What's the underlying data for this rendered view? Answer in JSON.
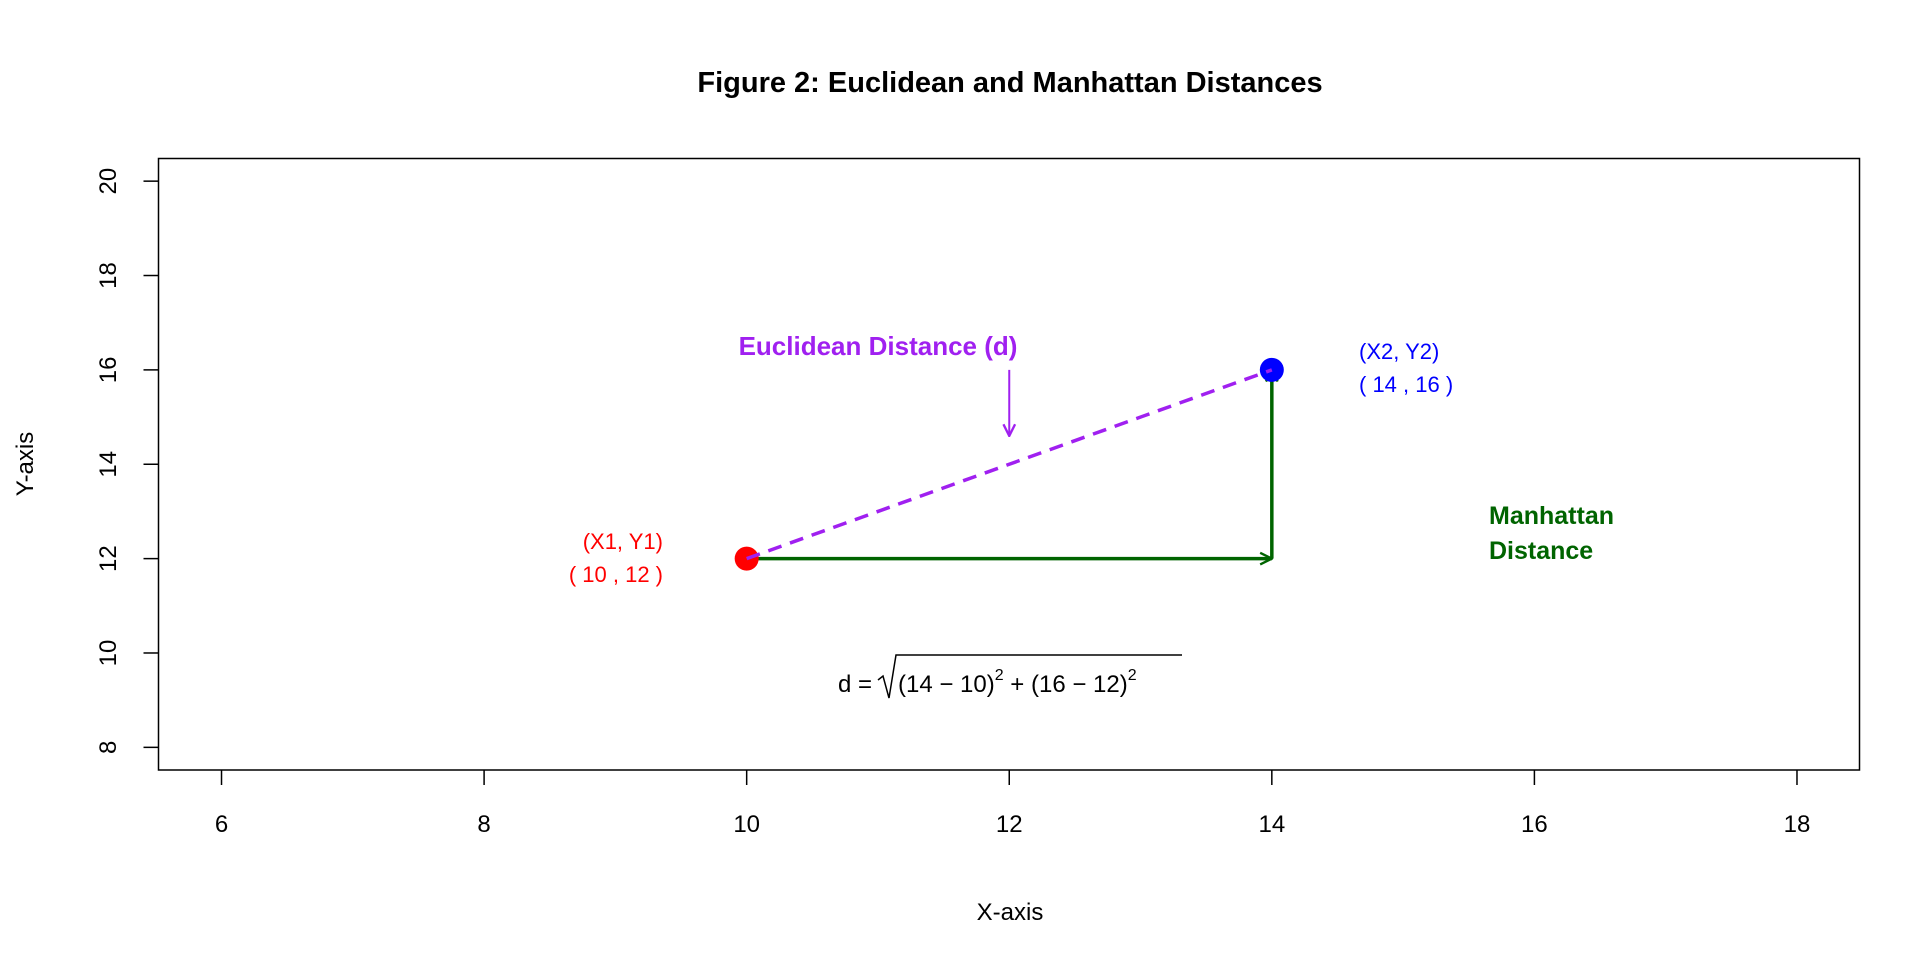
{
  "chart_data": {
    "type": "scatter",
    "title": "Figure 2: Euclidean and Manhattan Distances",
    "xlabel": "X-axis",
    "ylabel": "Y-axis",
    "xlim": [
      5.52,
      18.48
    ],
    "ylim": [
      7.52,
      20.48
    ],
    "xticks": [
      6,
      8,
      10,
      12,
      14,
      16,
      18
    ],
    "yticks": [
      8,
      10,
      12,
      14,
      16,
      18,
      20
    ],
    "grid": false,
    "points": [
      {
        "name": "point-1",
        "x": 10,
        "y": 12,
        "color": "#FF0000",
        "label_line1": "(X1, Y1)",
        "label_line2": "( 10 , 12 )"
      },
      {
        "name": "point-2",
        "x": 14,
        "y": 16,
        "color": "#0000FF",
        "label_line1": "(X2, Y2)",
        "label_line2": "( 14 , 16 )"
      }
    ],
    "euclidean": {
      "from": [
        10,
        12
      ],
      "to": [
        14,
        16
      ],
      "color": "#A020F0",
      "style": "dashed",
      "label": "Euclidean Distance (d)",
      "pointer_from": [
        12,
        16
      ],
      "pointer_to": [
        12,
        14.6
      ]
    },
    "manhattan": {
      "segments": [
        [
          [
            10,
            12
          ],
          [
            14,
            12
          ]
        ],
        [
          [
            14,
            12
          ],
          [
            14,
            16
          ]
        ]
      ],
      "color": "#006400",
      "label_line1": "Manhattan",
      "label_line2": "Distance"
    },
    "formula": {
      "prefix": "d = ",
      "term1": "(14 − 10)",
      "plus": " + ",
      "term2": "(16 − 12)",
      "exp": "2"
    }
  }
}
